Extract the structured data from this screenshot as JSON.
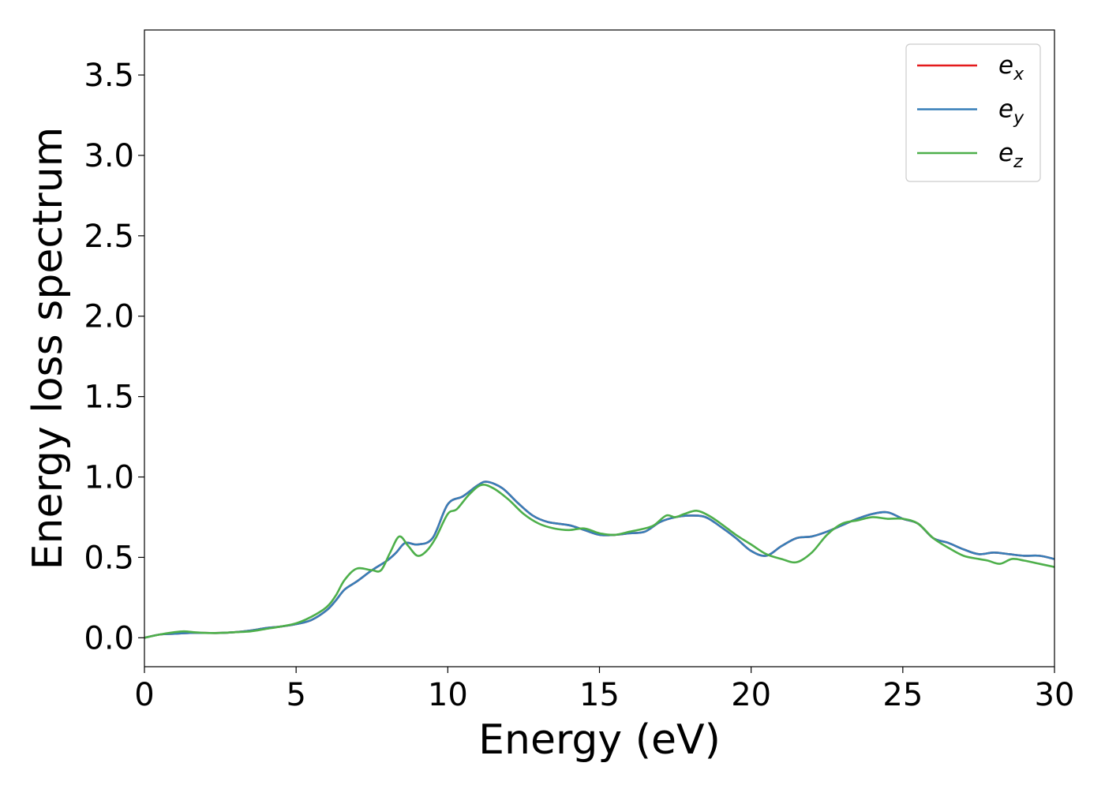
{
  "chart_data": {
    "type": "line",
    "title": "",
    "xlabel": "Energy (eV)",
    "ylabel": "Energy loss spectrum",
    "xlim": [
      0,
      30
    ],
    "ylim": [
      -0.18,
      3.78
    ],
    "xticks": [
      0,
      5,
      10,
      15,
      20,
      25,
      30
    ],
    "xtick_labels": [
      "0",
      "5",
      "10",
      "15",
      "20",
      "25",
      "30"
    ],
    "yticks": [
      0.0,
      0.5,
      1.0,
      1.5,
      2.0,
      2.5,
      3.0,
      3.5
    ],
    "ytick_labels": [
      "0.0",
      "0.5",
      "1.0",
      "1.5",
      "2.0",
      "2.5",
      "3.0",
      "3.5"
    ],
    "grid": false,
    "legend_position": "top-right",
    "series": [
      {
        "name": "e",
        "sub": "x",
        "color": "#e41a1c",
        "x": [
          0,
          0.5,
          1,
          1.5,
          2,
          2.5,
          3,
          3.5,
          4,
          4.5,
          5,
          5.5,
          6,
          6.3,
          6.6,
          7,
          7.5,
          8,
          8.3,
          8.6,
          9,
          9.5,
          10,
          10.5,
          11,
          11.3,
          11.8,
          12.3,
          12.8,
          13.3,
          14,
          14.5,
          15,
          15.5,
          16,
          16.5,
          17,
          17.5,
          18,
          18.5,
          19,
          19.5,
          20,
          20.5,
          21,
          21.5,
          22,
          22.5,
          23,
          23.5,
          24,
          24.5,
          25,
          25.5,
          26,
          26.5,
          27,
          27.5,
          28,
          28.5,
          29,
          29.5,
          30
        ],
        "y": [
          0,
          0.02,
          0.025,
          0.03,
          0.03,
          0.03,
          0.035,
          0.045,
          0.06,
          0.07,
          0.085,
          0.11,
          0.17,
          0.23,
          0.3,
          0.35,
          0.42,
          0.48,
          0.53,
          0.59,
          0.58,
          0.62,
          0.83,
          0.88,
          0.95,
          0.97,
          0.93,
          0.84,
          0.76,
          0.72,
          0.7,
          0.67,
          0.64,
          0.64,
          0.65,
          0.66,
          0.72,
          0.75,
          0.76,
          0.75,
          0.69,
          0.62,
          0.54,
          0.51,
          0.57,
          0.62,
          0.63,
          0.66,
          0.7,
          0.74,
          0.77,
          0.78,
          0.74,
          0.71,
          0.62,
          0.59,
          0.55,
          0.52,
          0.53,
          0.52,
          0.51,
          0.51,
          0.49
        ]
      },
      {
        "name": "e",
        "sub": "y",
        "color": "#377eb8",
        "x": [
          0,
          0.5,
          1,
          1.5,
          2,
          2.5,
          3,
          3.5,
          4,
          4.5,
          5,
          5.5,
          6,
          6.3,
          6.6,
          7,
          7.5,
          8,
          8.3,
          8.6,
          9,
          9.5,
          10,
          10.5,
          11,
          11.3,
          11.8,
          12.3,
          12.8,
          13.3,
          14,
          14.5,
          15,
          15.5,
          16,
          16.5,
          17,
          17.5,
          18,
          18.5,
          19,
          19.5,
          20,
          20.5,
          21,
          21.5,
          22,
          22.5,
          23,
          23.5,
          24,
          24.5,
          25,
          25.5,
          26,
          26.5,
          27,
          27.5,
          28,
          28.5,
          29,
          29.5,
          30
        ],
        "y": [
          0,
          0.02,
          0.025,
          0.03,
          0.03,
          0.03,
          0.035,
          0.045,
          0.06,
          0.07,
          0.085,
          0.11,
          0.17,
          0.23,
          0.3,
          0.35,
          0.42,
          0.48,
          0.53,
          0.59,
          0.58,
          0.62,
          0.83,
          0.88,
          0.95,
          0.97,
          0.93,
          0.84,
          0.76,
          0.72,
          0.7,
          0.67,
          0.64,
          0.64,
          0.65,
          0.66,
          0.72,
          0.75,
          0.76,
          0.75,
          0.69,
          0.62,
          0.54,
          0.51,
          0.57,
          0.62,
          0.63,
          0.66,
          0.7,
          0.74,
          0.77,
          0.78,
          0.74,
          0.71,
          0.62,
          0.59,
          0.55,
          0.52,
          0.53,
          0.52,
          0.51,
          0.51,
          0.49
        ]
      },
      {
        "name": "e",
        "sub": "z",
        "color": "#4daf4a",
        "x": [
          0,
          0.5,
          1,
          1.3,
          1.6,
          2,
          2.5,
          3,
          3.5,
          4,
          4.5,
          5,
          5.5,
          6,
          6.3,
          6.6,
          7,
          7.5,
          7.8,
          8.1,
          8.4,
          8.7,
          9,
          9.3,
          9.6,
          10,
          10.3,
          10.7,
          11.1,
          11.5,
          12,
          12.5,
          13,
          13.5,
          14,
          14.5,
          15,
          15.5,
          16,
          16.5,
          16.8,
          17.2,
          17.5,
          17.8,
          18.2,
          18.6,
          19,
          19.5,
          20,
          20.5,
          21,
          21.5,
          22,
          22.5,
          23,
          23.5,
          24,
          24.5,
          25,
          25.5,
          26,
          26.5,
          27,
          27.5,
          27.8,
          28.2,
          28.6,
          29,
          29.5,
          30
        ],
        "y": [
          0,
          0.02,
          0.035,
          0.04,
          0.035,
          0.03,
          0.03,
          0.035,
          0.04,
          0.055,
          0.07,
          0.09,
          0.13,
          0.19,
          0.26,
          0.36,
          0.43,
          0.42,
          0.42,
          0.53,
          0.63,
          0.57,
          0.51,
          0.54,
          0.62,
          0.77,
          0.8,
          0.89,
          0.95,
          0.93,
          0.86,
          0.77,
          0.71,
          0.68,
          0.67,
          0.68,
          0.65,
          0.64,
          0.66,
          0.68,
          0.7,
          0.76,
          0.75,
          0.77,
          0.79,
          0.76,
          0.71,
          0.64,
          0.58,
          0.52,
          0.49,
          0.47,
          0.53,
          0.64,
          0.71,
          0.73,
          0.75,
          0.74,
          0.74,
          0.71,
          0.62,
          0.56,
          0.51,
          0.49,
          0.48,
          0.46,
          0.49,
          0.48,
          0.46,
          0.44
        ]
      }
    ]
  }
}
